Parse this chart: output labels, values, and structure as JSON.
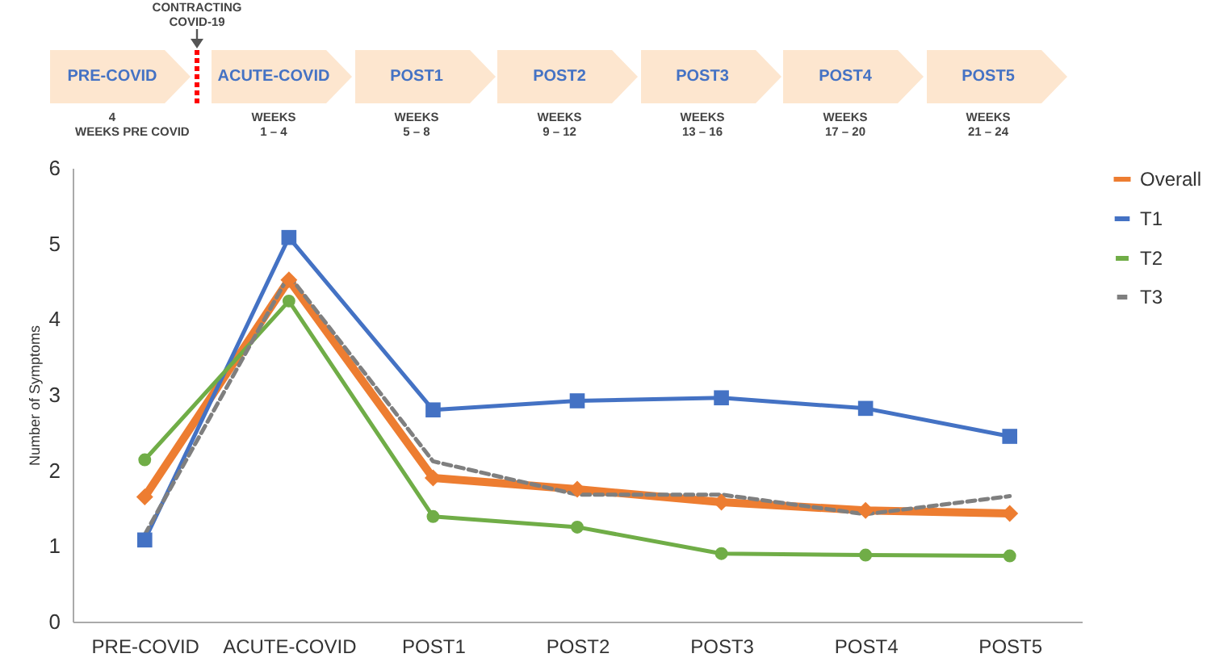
{
  "chart_data": [
    {
      "type": "other",
      "categories": [
        "PRE-COVID",
        "ACUTE-COVID",
        "POST1",
        "POST2",
        "POST3",
        "POST4",
        "POST5"
      ],
      "annotations": [
        "CONTRACTING COVID-19",
        "4 WEEKS PRE COVID",
        "WEEKS 1 – 4",
        "WEEKS 5 – 8",
        "WEEKS 9 – 12",
        "WEEKS 13 – 16",
        "WEEKS 17 – 20",
        "WEEKS 21 – 24"
      ]
    },
    {
      "type": "line",
      "ylabel": "Number of Symptoms",
      "categories": [
        "PRE-COVID",
        "ACUTE-COVID",
        "POST1",
        "POST2",
        "POST3",
        "POST4",
        "POST5"
      ],
      "series": [
        {
          "name": "Overall",
          "color": "#ed7d31",
          "marker": "diamond",
          "line_style": "solid",
          "values": [
            1.65,
            4.52,
            1.9,
            1.75,
            1.58,
            1.47,
            1.43
          ]
        },
        {
          "name": "T1",
          "color": "#4472c4",
          "marker": "square",
          "line_style": "solid",
          "values": [
            1.08,
            5.08,
            2.8,
            2.92,
            2.96,
            2.82,
            2.45
          ]
        },
        {
          "name": "T2",
          "color": "#70ad47",
          "marker": "circle",
          "line_style": "solid",
          "values": [
            2.14,
            4.24,
            1.39,
            1.25,
            0.9,
            0.88,
            0.87
          ]
        },
        {
          "name": "T3",
          "color": "#7f7f7f",
          "marker": "none",
          "line_style": "dashed",
          "values": [
            1.15,
            4.58,
            2.12,
            1.68,
            1.68,
            1.42,
            1.66
          ]
        }
      ],
      "ylim": [
        0,
        6
      ],
      "yticks": [
        0,
        1,
        2,
        3,
        4,
        5,
        6
      ],
      "grid": false,
      "legend": "right"
    }
  ]
}
